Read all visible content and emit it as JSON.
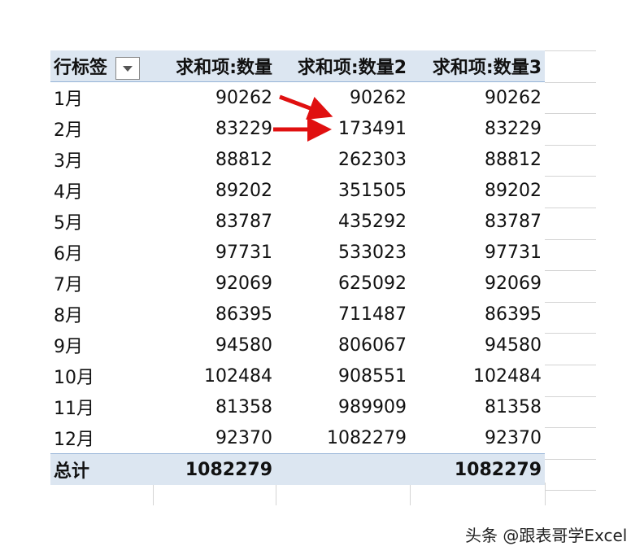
{
  "header": {
    "row_label": "行标签",
    "col1": "求和项:数量",
    "col2": "求和项:数量2",
    "col3": "求和项:数量3"
  },
  "rows": [
    {
      "label": "1月",
      "v1": "90262",
      "v2": "90262",
      "v3": "90262"
    },
    {
      "label": "2月",
      "v1": "83229",
      "v2": "173491",
      "v3": "83229"
    },
    {
      "label": "3月",
      "v1": "88812",
      "v2": "262303",
      "v3": "88812"
    },
    {
      "label": "4月",
      "v1": "89202",
      "v2": "351505",
      "v3": "89202"
    },
    {
      "label": "5月",
      "v1": "83787",
      "v2": "435292",
      "v3": "83787"
    },
    {
      "label": "6月",
      "v1": "97731",
      "v2": "533023",
      "v3": "97731"
    },
    {
      "label": "7月",
      "v1": "92069",
      "v2": "625092",
      "v3": "92069"
    },
    {
      "label": "8月",
      "v1": "86395",
      "v2": "711487",
      "v3": "86395"
    },
    {
      "label": "9月",
      "v1": "94580",
      "v2": "806067",
      "v3": "94580"
    },
    {
      "label": "10月",
      "v1": "102484",
      "v2": "908551",
      "v3": "102484"
    },
    {
      "label": "11月",
      "v1": "81358",
      "v2": "989909",
      "v3": "81358"
    },
    {
      "label": "12月",
      "v1": "92370",
      "v2": "1082279",
      "v3": "92370"
    }
  ],
  "total": {
    "label": "总计",
    "v1": "1082279",
    "v2": "",
    "v3": "1082279"
  },
  "watermark": "头条 @跟表哥学Excel",
  "colors": {
    "header_bg": "#dce6f1",
    "arrow": "#e01010"
  }
}
